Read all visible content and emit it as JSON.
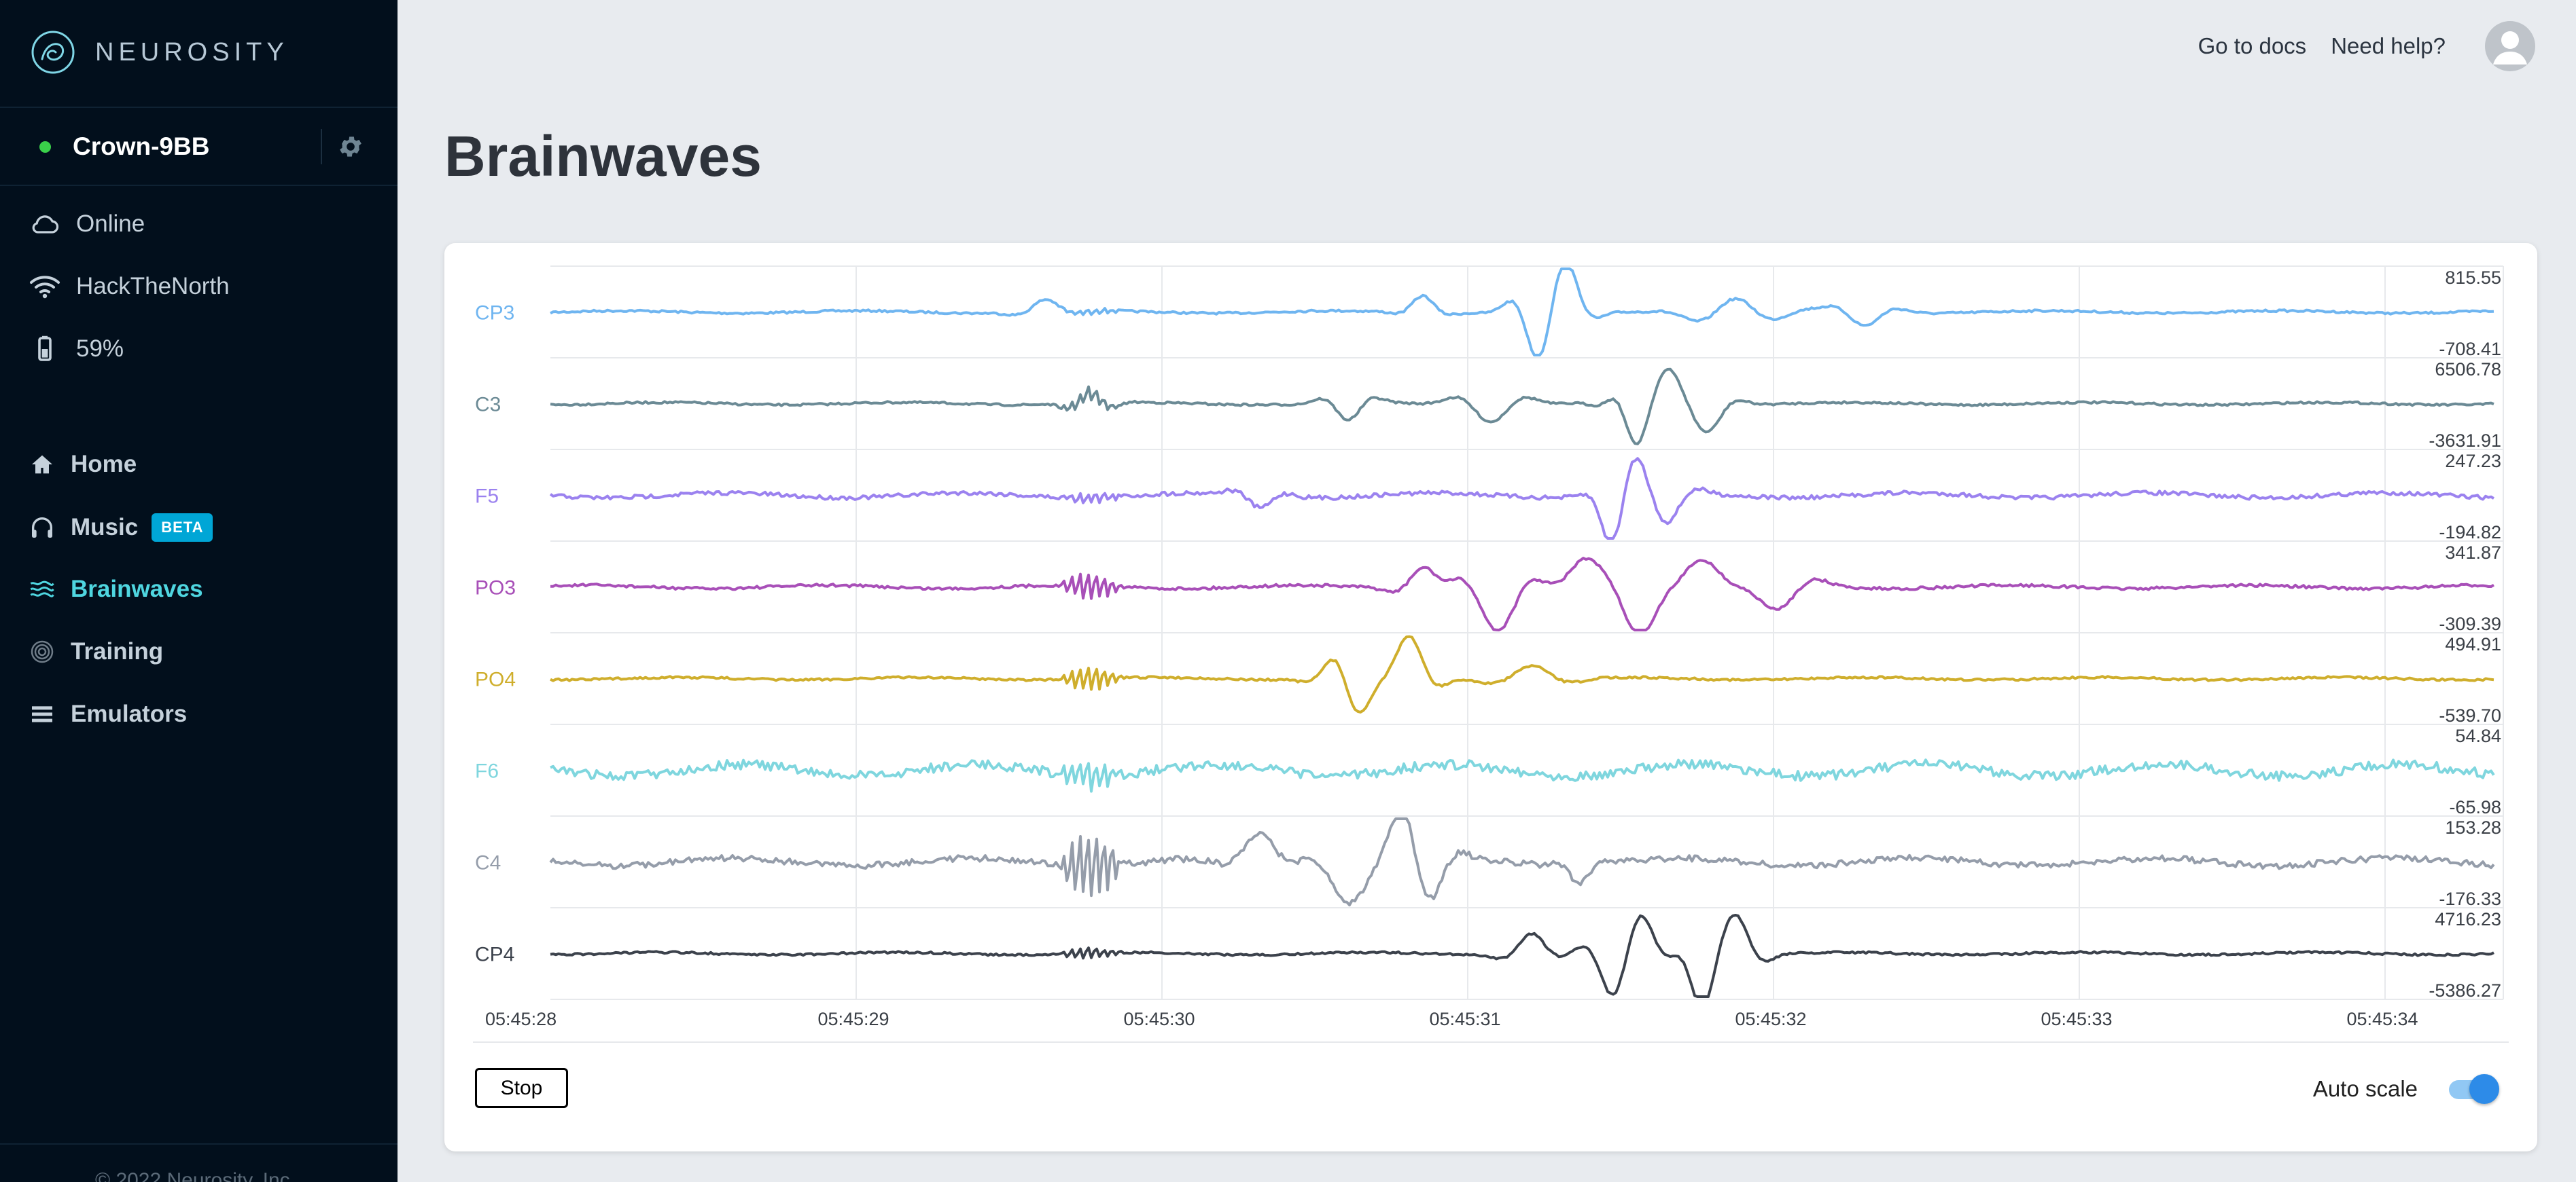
{
  "app": {
    "brand": "NEUROSITY",
    "footer": "© 2022 Neurosity, Inc."
  },
  "device": {
    "name": "Crown-9BB",
    "status_color": "#3ad14a"
  },
  "status_items": [
    {
      "icon": "cloud-icon",
      "label": "Online"
    },
    {
      "icon": "wifi-icon",
      "label": "HackTheNorth"
    },
    {
      "icon": "battery-icon",
      "label": "59%"
    }
  ],
  "nav": [
    {
      "icon": "home-icon",
      "label": "Home",
      "active": false
    },
    {
      "icon": "headphones-icon",
      "label": "Music",
      "badge": "BETA",
      "active": false
    },
    {
      "icon": "waves-icon",
      "label": "Brainwaves",
      "active": true
    },
    {
      "icon": "fingerprint-icon",
      "label": "Training",
      "active": false
    },
    {
      "icon": "list-icon",
      "label": "Emulators",
      "active": false
    }
  ],
  "topbar": {
    "docs": "Go to docs",
    "help": "Need help?"
  },
  "page": {
    "title": "Brainwaves"
  },
  "controls": {
    "stop_label": "Stop",
    "autoscale_label": "Auto scale",
    "autoscale_on": true
  },
  "chart_data": {
    "type": "line",
    "x_ticks": [
      "05:45:28",
      "05:45:29",
      "05:45:30",
      "05:45:31",
      "05:45:32",
      "05:45:33",
      "05:45:34"
    ],
    "grid": true,
    "series": [
      {
        "name": "CP3",
        "color": "#6fb5f0",
        "max": "815.55",
        "min": "-708.41"
      },
      {
        "name": "C3",
        "color": "#6b8a95",
        "max": "6506.78",
        "min": "-3631.91"
      },
      {
        "name": "F5",
        "color": "#9b82ef",
        "max": "247.23",
        "min": "-194.82"
      },
      {
        "name": "PO3",
        "color": "#a84fb8",
        "max": "341.87",
        "min": "-309.39"
      },
      {
        "name": "PO4",
        "color": "#cfae2c",
        "max": "494.91",
        "min": "-539.70"
      },
      {
        "name": "F6",
        "color": "#7fd6de",
        "max": "54.84",
        "min": "-65.98"
      },
      {
        "name": "C4",
        "color": "#959daa",
        "max": "153.28",
        "min": "-176.33"
      },
      {
        "name": "CP4",
        "color": "#3c424c",
        "max": "4716.23",
        "min": "-5386.27"
      }
    ]
  }
}
